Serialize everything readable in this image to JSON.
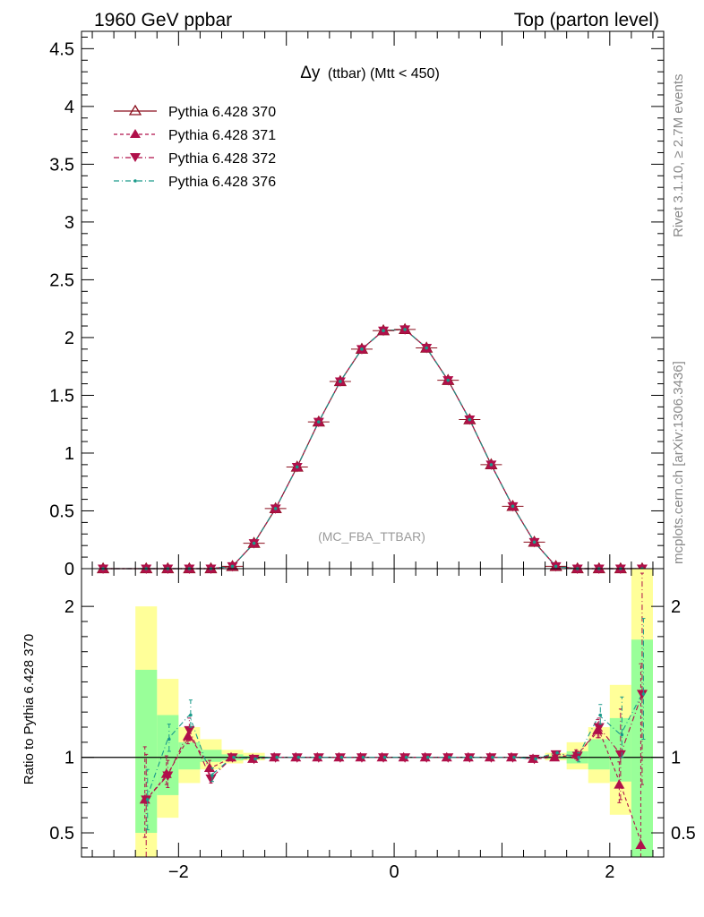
{
  "header": {
    "left": "1960 GeV ppbar",
    "right": "Top (parton level)"
  },
  "side_labels": {
    "rivet": "Rivet 3.1.10, ≥ 2.7M events",
    "mcplots": "mcplots.cern.ch [arXiv:1306.3436]"
  },
  "colors": {
    "series_370": "#8b0f1e",
    "series_371": "#b0104a",
    "series_372": "#b0104a",
    "series_376": "#1a9a8a",
    "band_inner": "#99ff99",
    "band_outer": "#ffff99"
  },
  "chart_data": [
    {
      "type": "line",
      "panel": "main",
      "title": "Δy (ttbar) (Mtt < 450)",
      "title_main": "Δy",
      "title_sub": "(ttbar) (Mtt < 450)",
      "watermark": "(MC_FBA_TTBAR)",
      "xlim": [
        -2.9,
        2.5
      ],
      "ylim": [
        0,
        4.65
      ],
      "yticks": [
        0,
        0.5,
        1,
        1.5,
        2,
        2.5,
        3,
        3.5,
        4,
        4.5
      ],
      "yticklabels": [
        "0",
        "0.5",
        "1",
        "1.5",
        "2",
        "2.5",
        "3",
        "3.5",
        "4",
        "4.5"
      ],
      "x": [
        -2.7,
        -2.3,
        -2.1,
        -1.9,
        -1.7,
        -1.5,
        -1.3,
        -1.1,
        -0.9,
        -0.7,
        -0.5,
        -0.3,
        -0.1,
        0.1,
        0.3,
        0.5,
        0.7,
        0.9,
        1.1,
        1.3,
        1.5,
        1.7,
        1.9,
        2.1,
        2.3
      ],
      "legend_position": "top-left",
      "series": [
        {
          "name": "Pythia 6.428 370",
          "marker": "triangle-open",
          "line": "solid",
          "values": [
            0.0,
            0.0,
            0.0,
            0.0,
            0.0,
            0.02,
            0.22,
            0.52,
            0.88,
            1.27,
            1.62,
            1.9,
            2.06,
            2.07,
            1.91,
            1.63,
            1.29,
            0.9,
            0.54,
            0.23,
            0.02,
            0.0,
            0.0,
            0.0,
            0.0
          ]
        },
        {
          "name": "Pythia 6.428 371",
          "marker": "triangle-up",
          "line": "dashed",
          "values": [
            0.0,
            0.0,
            0.0,
            0.0,
            0.0,
            0.02,
            0.22,
            0.52,
            0.88,
            1.27,
            1.62,
            1.9,
            2.06,
            2.07,
            1.91,
            1.63,
            1.29,
            0.9,
            0.54,
            0.23,
            0.02,
            0.0,
            0.0,
            0.0,
            0.0
          ]
        },
        {
          "name": "Pythia 6.428 372",
          "marker": "triangle-down",
          "line": "dashdot",
          "values": [
            0.0,
            0.0,
            0.0,
            0.0,
            0.0,
            0.02,
            0.22,
            0.52,
            0.88,
            1.27,
            1.62,
            1.9,
            2.06,
            2.07,
            1.91,
            1.63,
            1.29,
            0.9,
            0.54,
            0.23,
            0.02,
            0.0,
            0.0,
            0.0,
            0.0
          ]
        },
        {
          "name": "Pythia 6.428 376",
          "marker": "dot",
          "line": "dashdot",
          "values": [
            0.0,
            0.0,
            0.0,
            0.0,
            0.0,
            0.02,
            0.22,
            0.52,
            0.88,
            1.27,
            1.62,
            1.9,
            2.06,
            2.07,
            1.91,
            1.63,
            1.29,
            0.9,
            0.54,
            0.23,
            0.02,
            0.0,
            0.0,
            0.0,
            0.0
          ]
        }
      ]
    },
    {
      "type": "line",
      "panel": "ratio",
      "ylabel": "Ratio to Pythia 6.428 370",
      "xlim": [
        -2.9,
        2.5
      ],
      "ylim": [
        0.34,
        2.25
      ],
      "yticks": [
        0.5,
        1,
        2
      ],
      "yticklabels": [
        "0.5",
        "1",
        "2"
      ],
      "xticks": [
        -2,
        0,
        2
      ],
      "xticklabels": [
        "−2",
        "0",
        "2"
      ],
      "reference_line": 1,
      "bands": {
        "x_low": [
          -2.4,
          -2.2,
          -2.0,
          -1.8,
          -1.6,
          -1.4,
          1.4,
          1.6,
          1.8,
          2.0,
          2.2
        ],
        "x_high": [
          -2.2,
          -2.0,
          -1.8,
          -1.6,
          -1.4,
          -1.2,
          1.6,
          1.8,
          2.0,
          2.2,
          2.4
        ],
        "inner_low": [
          0.5,
          0.75,
          0.92,
          0.97,
          0.98,
          0.99,
          0.99,
          0.96,
          0.92,
          0.84,
          0.34
        ],
        "inner_high": [
          1.58,
          1.28,
          1.1,
          1.05,
          1.02,
          1.01,
          1.01,
          1.04,
          1.12,
          1.26,
          1.78
        ],
        "outer_low": [
          0.34,
          0.6,
          0.83,
          0.92,
          0.96,
          0.98,
          0.98,
          0.92,
          0.83,
          0.62,
          0.34
        ],
        "outer_high": [
          2.0,
          1.52,
          1.2,
          1.12,
          1.05,
          1.03,
          1.03,
          1.1,
          1.2,
          1.48,
          2.25
        ]
      },
      "x": [
        -2.3,
        -2.1,
        -1.9,
        -1.7,
        -1.5,
        -1.3,
        -1.1,
        -0.9,
        -0.7,
        -0.5,
        -0.3,
        -0.1,
        0.1,
        0.3,
        0.5,
        0.7,
        0.9,
        1.1,
        1.3,
        1.5,
        1.7,
        1.9,
        2.1,
        2.3
      ],
      "series": [
        {
          "name": "Pythia 6.428 371",
          "marker": "triangle-up",
          "line": "dashed",
          "values": [
            0.72,
            0.89,
            1.14,
            0.93,
            1.0,
            0.99,
            1.0,
            1.0,
            1.0,
            1.0,
            1.0,
            1.0,
            1.0,
            1.0,
            1.0,
            1.0,
            1.0,
            1.0,
            0.99,
            1.0,
            1.02,
            1.18,
            0.82,
            0.42
          ],
          "err_low": [
            0.25,
            0.07,
            0.05,
            0.05,
            0.0,
            0.0,
            0.0,
            0.0,
            0.0,
            0.0,
            0.0,
            0.0,
            0.0,
            0.0,
            0.0,
            0.0,
            0.0,
            0.0,
            0.0,
            0.0,
            0.03,
            0.05,
            0.12,
            0.1
          ],
          "err_high": [
            0.35,
            0.12,
            0.06,
            0.05,
            0.0,
            0.0,
            0.0,
            0.0,
            0.0,
            0.0,
            0.0,
            0.0,
            0.0,
            0.0,
            0.0,
            0.0,
            0.0,
            0.0,
            0.0,
            0.0,
            0.03,
            0.07,
            0.15,
            1.2
          ]
        },
        {
          "name": "Pythia 6.428 372",
          "marker": "triangle-down",
          "line": "dashdot",
          "values": [
            0.72,
            0.88,
            1.18,
            0.86,
            1.0,
            0.99,
            1.0,
            1.0,
            1.0,
            1.0,
            1.0,
            1.0,
            1.0,
            1.0,
            1.0,
            1.0,
            1.0,
            1.0,
            0.99,
            1.02,
            1.01,
            1.2,
            1.02,
            1.42
          ],
          "err_low": [
            0.4,
            0.08,
            0.07,
            0.03,
            0.0,
            0.0,
            0.0,
            0.0,
            0.0,
            0.0,
            0.0,
            0.0,
            0.0,
            0.0,
            0.0,
            0.0,
            0.0,
            0.0,
            0.0,
            0.0,
            0.03,
            0.07,
            0.3,
            0.6
          ],
          "err_high": [
            0.3,
            0.1,
            0.08,
            0.06,
            0.0,
            0.0,
            0.0,
            0.0,
            0.0,
            0.0,
            0.0,
            0.0,
            0.0,
            0.0,
            0.0,
            0.0,
            0.0,
            0.0,
            0.0,
            0.0,
            0.03,
            0.06,
            0.3,
            0.8
          ]
        },
        {
          "name": "Pythia 6.428 376",
          "marker": "dot",
          "line": "dashdot",
          "values": [
            0.72,
            1.12,
            1.28,
            0.88,
            1.0,
            0.99,
            1.0,
            1.0,
            1.0,
            1.0,
            1.0,
            1.0,
            1.0,
            1.0,
            1.0,
            1.0,
            1.0,
            1.0,
            0.99,
            1.03,
            1.0,
            1.28,
            1.15,
            1.42
          ],
          "err_low": [
            0.2,
            0.08,
            0.08,
            0.04,
            0.0,
            0.0,
            0.0,
            0.0,
            0.0,
            0.0,
            0.0,
            0.0,
            0.0,
            0.0,
            0.0,
            0.0,
            0.0,
            0.0,
            0.0,
            0.0,
            0.03,
            0.06,
            0.15,
            0.3
          ],
          "err_high": [
            0.2,
            0.1,
            0.1,
            0.05,
            0.0,
            0.0,
            0.0,
            0.0,
            0.0,
            0.0,
            0.0,
            0.0,
            0.0,
            0.0,
            0.0,
            0.0,
            0.0,
            0.0,
            0.0,
            0.0,
            0.03,
            0.07,
            0.25,
            0.5
          ]
        }
      ]
    }
  ]
}
